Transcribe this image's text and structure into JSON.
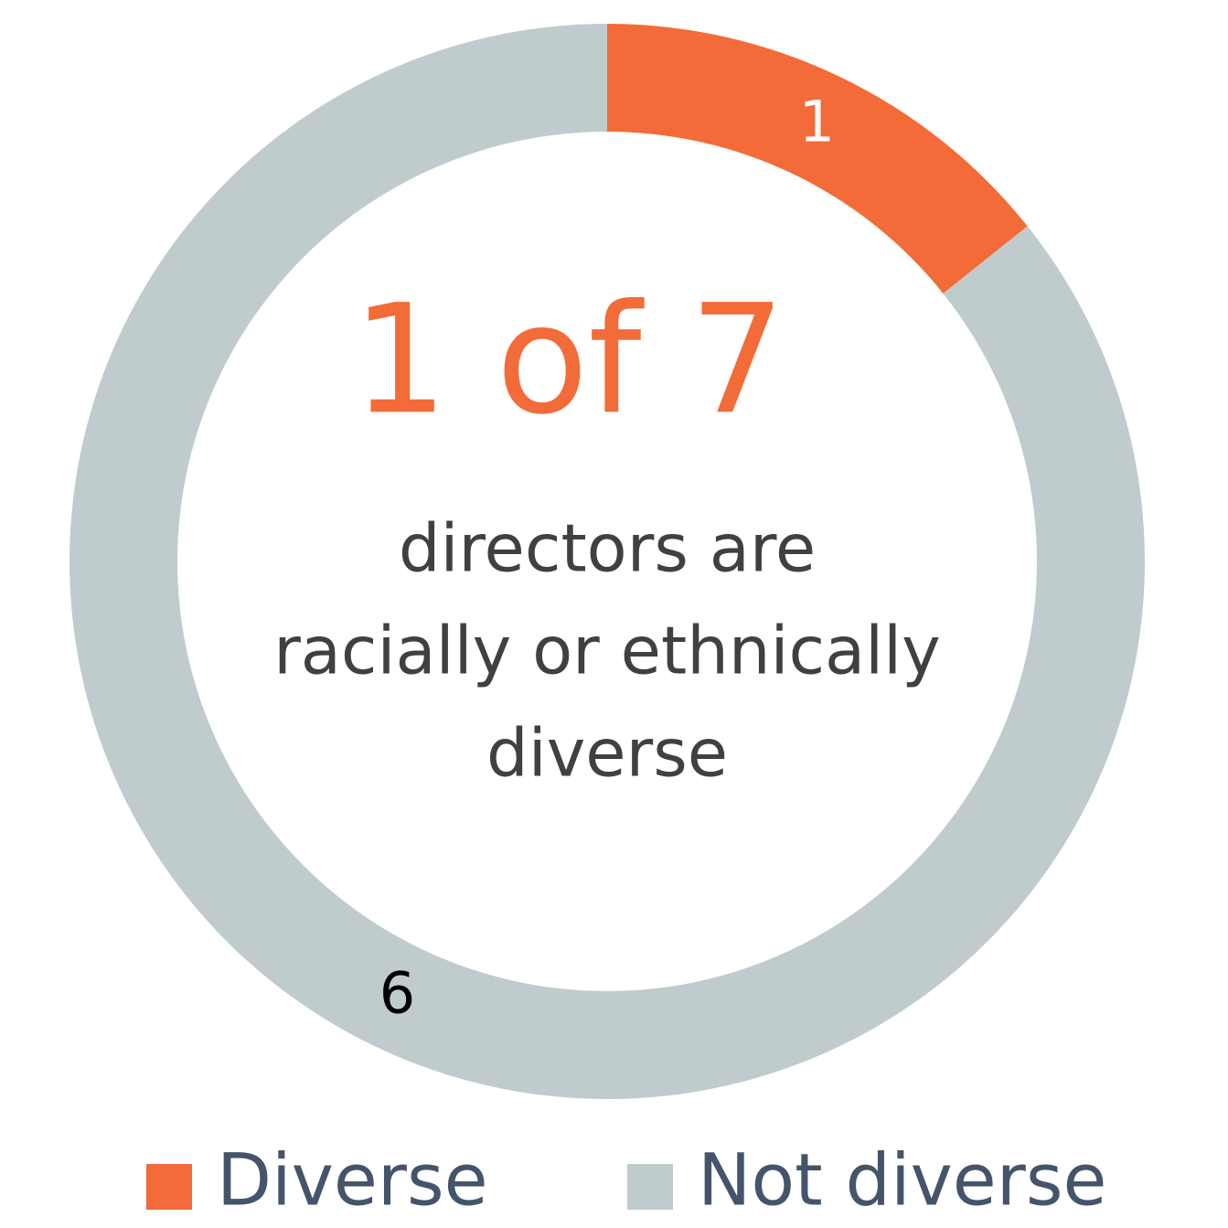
{
  "chart_data": {
    "type": "donut",
    "categories": [
      "Diverse",
      "Not diverse"
    ],
    "values": [
      1,
      6
    ],
    "colors": [
      "#f26b38",
      "#c0cbce"
    ],
    "label_colors": [
      "#ffffff",
      "#000000"
    ],
    "center_title": "1 of 7",
    "center_text": [
      "directors are",
      "racially or ethnically",
      "diverse"
    ]
  }
}
